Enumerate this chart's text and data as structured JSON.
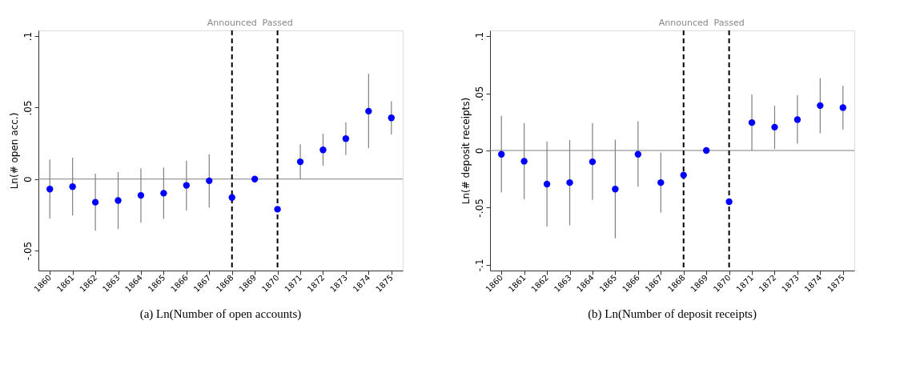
{
  "chart_data": [
    {
      "type": "scatter",
      "title": "(a) Ln(Number of open accounts)",
      "ylabel": "Ln(# open acc.)",
      "categories": [
        "1860",
        "1861",
        "1862",
        "1863",
        "1864",
        "1865",
        "1866",
        "1867",
        "1868",
        "1869",
        "1870",
        "1871",
        "1872",
        "1873",
        "1874",
        "1875"
      ],
      "series": [
        {
          "color": "#0000ff",
          "values": [
            -0.007,
            -0.0053,
            -0.0162,
            -0.015,
            -0.0114,
            -0.0099,
            -0.0044,
            -0.0012,
            -0.0129,
            0,
            -0.0211,
            0.0121,
            0.0204,
            0.0283,
            0.0475,
            0.0428
          ],
          "errors": [
            [
              -0.0276,
              0.0137
            ],
            [
              -0.0255,
              0.015
            ],
            [
              -0.0361,
              0.0037
            ],
            [
              -0.0349,
              0.0048
            ],
            [
              -0.0305,
              0.0076
            ],
            [
              -0.0278,
              0.0081
            ],
            [
              -0.022,
              0.0129
            ],
            [
              -0.0199,
              0.0174
            ],
            null,
            null,
            null,
            [
              0,
              0.0243
            ],
            [
              0.0093,
              0.0317
            ],
            [
              0.0169,
              0.0398
            ],
            [
              0.0217,
              0.0736
            ],
            [
              0.0312,
              0.0544
            ]
          ]
        }
      ],
      "ylim": [
        -0.064,
        0.104
      ],
      "yticks": [
        {
          "value": -0.05,
          "label": "-.05"
        },
        0,
        {
          "value": 0.05,
          "label": ".05"
        },
        {
          "value": 0.1,
          "label": ".1"
        }
      ],
      "marker": "circle",
      "grid": false,
      "ref_lines": [
        {
          "axis": "y",
          "value": 0,
          "color": "#808080",
          "line_style": "solid"
        },
        {
          "axis": "x",
          "value": "1868",
          "label": "Announced",
          "color": "#000000",
          "line_style": "dashed"
        },
        {
          "axis": "x",
          "value": "1870",
          "label": "Passed",
          "color": "#000000",
          "line_style": "dashed"
        }
      ]
    },
    {
      "type": "scatter",
      "title": "(b) Ln(Number of deposit receipts)",
      "ylabel": "Ln(# deposit receipts)",
      "categories": [
        "1860",
        "1861",
        "1862",
        "1863",
        "1864",
        "1865",
        "1866",
        "1867",
        "1868",
        "1869",
        "1870",
        "1871",
        "1872",
        "1873",
        "1874",
        "1875"
      ],
      "series": [
        {
          "color": "#0000ff",
          "values": [
            -0.0033,
            -0.0094,
            -0.0294,
            -0.0281,
            -0.0099,
            -0.0338,
            -0.0033,
            -0.0281,
            -0.0215,
            0,
            -0.0448,
            0.0244,
            0.0204,
            0.027,
            0.0393,
            0.0375
          ],
          "errors": [
            [
              -0.0367,
              0.0303
            ],
            [
              -0.0426,
              0.0239
            ],
            [
              -0.0665,
              0.0079
            ],
            [
              -0.0654,
              0.0092
            ],
            [
              -0.0432,
              0.0239
            ],
            [
              -0.0768,
              0.0094
            ],
            [
              -0.0316,
              0.0255
            ],
            [
              -0.0542,
              -0.002
            ],
            null,
            null,
            null,
            [
              0,
              0.049
            ],
            [
              0.0013,
              0.0391
            ],
            [
              0.0059,
              0.0483
            ],
            [
              0.0151,
              0.0632
            ],
            [
              0.0184,
              0.0566
            ]
          ]
        }
      ],
      "ylim": [
        -0.105,
        0.105
      ],
      "yticks": [
        {
          "value": -0.1,
          "label": "-.1"
        },
        {
          "value": -0.05,
          "label": "-.05"
        },
        0,
        {
          "value": 0.05,
          "label": ".05"
        },
        {
          "value": 0.1,
          "label": ".1"
        }
      ],
      "marker": "circle",
      "grid": false,
      "ref_lines": [
        {
          "axis": "y",
          "value": 0,
          "color": "#808080",
          "line_style": "solid"
        },
        {
          "axis": "x",
          "value": "1868",
          "label": "Announced",
          "color": "#000000",
          "line_style": "dashed"
        },
        {
          "axis": "x",
          "value": "1870",
          "label": "Passed",
          "color": "#000000",
          "line_style": "dashed"
        }
      ]
    }
  ]
}
